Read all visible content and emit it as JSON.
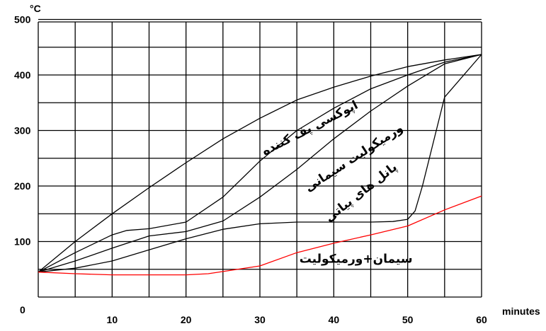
{
  "chart_data": {
    "type": "line",
    "ylabel": "°C",
    "xlabel": "minutes",
    "xlim": [
      0,
      60
    ],
    "ylim": [
      0,
      500
    ],
    "x_ticks": [
      0,
      10,
      20,
      30,
      40,
      50,
      60
    ],
    "x_tick_labels": [
      "10",
      "20",
      "30",
      "40",
      "50",
      "60"
    ],
    "y_ticks": [
      0,
      100,
      200,
      300,
      400,
      500
    ],
    "y_tick_labels": [
      "0",
      "100",
      "200",
      "300",
      "400",
      "500"
    ],
    "origin_label": "0",
    "grid": true,
    "series": [
      {
        "color": "#000000",
        "x": [
          0,
          5,
          10,
          15,
          20,
          25,
          30,
          35,
          40,
          45,
          50,
          55,
          60
        ],
        "y": [
          45,
          100,
          150,
          197,
          242,
          285,
          322,
          355,
          378,
          398,
          415,
          427,
          437
        ]
      },
      {
        "color": "#000000",
        "x": [
          0,
          5,
          10,
          12,
          15,
          20,
          25,
          30,
          35,
          40,
          45,
          50,
          55,
          60
        ],
        "y": [
          45,
          80,
          112,
          120,
          123,
          135,
          180,
          245,
          300,
          340,
          375,
          400,
          423,
          437
        ]
      },
      {
        "color": "#000000",
        "x": [
          0,
          5,
          10,
          15,
          20,
          25,
          30,
          35,
          40,
          45,
          50,
          55,
          60
        ],
        "y": [
          45,
          65,
          88,
          110,
          118,
          137,
          180,
          230,
          285,
          335,
          380,
          420,
          437
        ]
      },
      {
        "color": "#000000",
        "x": [
          0,
          5,
          10,
          15,
          20,
          25,
          30,
          35,
          40,
          45,
          48,
          50,
          51,
          52,
          55,
          60
        ],
        "y": [
          45,
          52,
          65,
          85,
          105,
          122,
          132,
          135,
          135,
          135,
          136,
          140,
          155,
          200,
          360,
          437
        ]
      },
      {
        "color": "#ff0000",
        "x": [
          0,
          5,
          10,
          15,
          20,
          23,
          25,
          30,
          35,
          40,
          45,
          50,
          55,
          60
        ],
        "y": [
          45,
          42,
          40,
          40,
          40,
          42,
          46,
          56,
          80,
          97,
          112,
          128,
          157,
          182
        ]
      }
    ],
    "annotations": [
      {
        "text": "اپوکسی پف کننده",
        "x": 37,
        "y": 298,
        "angle": -27
      },
      {
        "text": "ورمیکولیت سیمانی",
        "x": 43,
        "y": 245,
        "angle": -33
      },
      {
        "text": "پانل های پیاتی",
        "x": 44,
        "y": 183,
        "angle": -38
      },
      {
        "text": "سیمان+ورمیکولیت",
        "x": 43,
        "y": 62,
        "angle": 0
      }
    ]
  }
}
